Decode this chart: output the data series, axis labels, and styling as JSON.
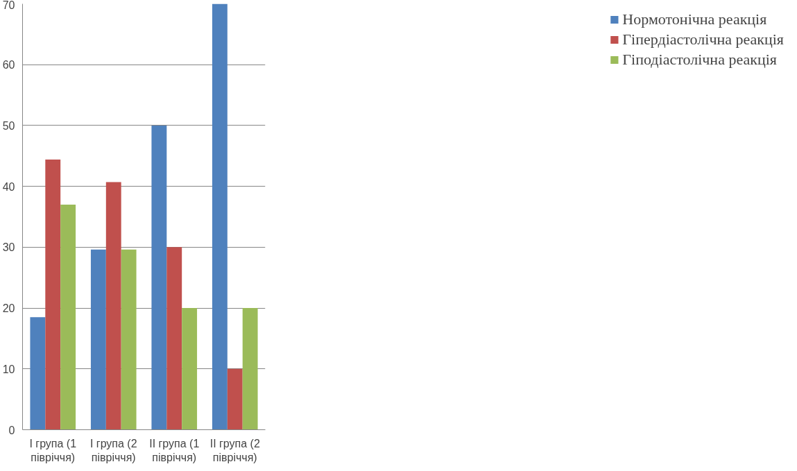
{
  "chart_data": {
    "type": "bar",
    "categories": [
      "І група (1\nпівріччя)",
      "І група (2\nпівріччя)",
      "ІІ група (1\nпівріччя)",
      "ІІ група (2\nпівріччя)"
    ],
    "series": [
      {
        "name": "Нормотонічна реакція",
        "color": "#4f81bd",
        "values": [
          18.5,
          29.6,
          50,
          70
        ]
      },
      {
        "name": "Гіпердіастолічна реакція",
        "color": "#c0504d",
        "values": [
          44.4,
          40.7,
          30,
          10
        ]
      },
      {
        "name": "Гіподіастолічна реакція",
        "color": "#9bbb59",
        "values": [
          37,
          29.6,
          20,
          20
        ]
      }
    ],
    "ylim": [
      0,
      70
    ],
    "yticks": [
      0,
      10,
      20,
      30,
      40,
      50,
      60,
      70
    ],
    "grid": "y",
    "legend": "right"
  }
}
